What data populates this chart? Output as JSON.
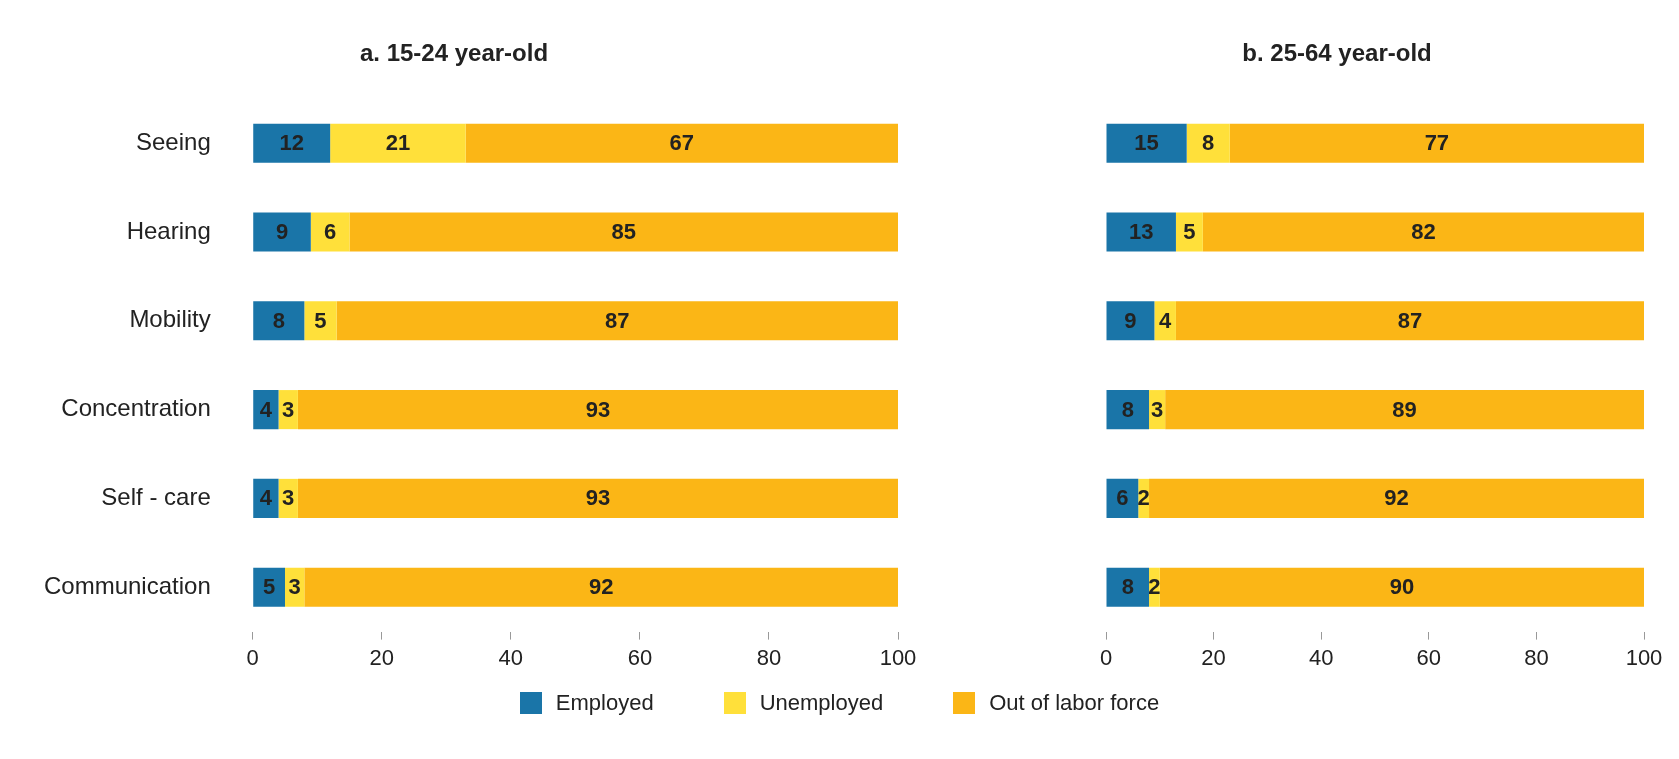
{
  "chart_data": [
    {
      "type": "bar",
      "title": "a. 15-24 year-old",
      "orientation": "horizontal",
      "stacked": true,
      "data_labels": true,
      "grid": false,
      "legend": "bottom",
      "categories": [
        "Seeing",
        "Hearing",
        "Mobility",
        "Concentration",
        "Self - care",
        "Communication"
      ],
      "xlim": [
        0,
        100
      ],
      "xticks": [
        0,
        20,
        40,
        60,
        80,
        100
      ],
      "series": [
        {
          "name": "Employed",
          "color": "#1a75a8",
          "values": [
            12,
            9,
            8,
            4,
            4,
            5
          ]
        },
        {
          "name": "Unemployed",
          "color": "#ffe03a",
          "values": [
            21,
            6,
            5,
            3,
            3,
            3
          ]
        },
        {
          "name": "Out of labor force",
          "color": "#fbb616",
          "values": [
            67,
            85,
            87,
            93,
            93,
            92
          ]
        }
      ]
    },
    {
      "type": "bar",
      "title": "b. 25-64 year-old",
      "orientation": "horizontal",
      "stacked": true,
      "data_labels": true,
      "grid": false,
      "categories": [
        null,
        null,
        null,
        null,
        null,
        null
      ],
      "xlim": [
        0,
        100
      ],
      "xticks": [
        0,
        20,
        40,
        60,
        80,
        100
      ],
      "series": [
        {
          "color": "#1a75a8",
          "values": [
            15,
            13,
            9,
            8,
            6,
            8
          ]
        },
        {
          "color": "#ffe03a",
          "values": [
            8,
            5,
            4,
            3,
            2,
            2
          ]
        },
        {
          "color": "#fbb616",
          "values": [
            77,
            82,
            87,
            89,
            92,
            90
          ]
        }
      ]
    }
  ]
}
